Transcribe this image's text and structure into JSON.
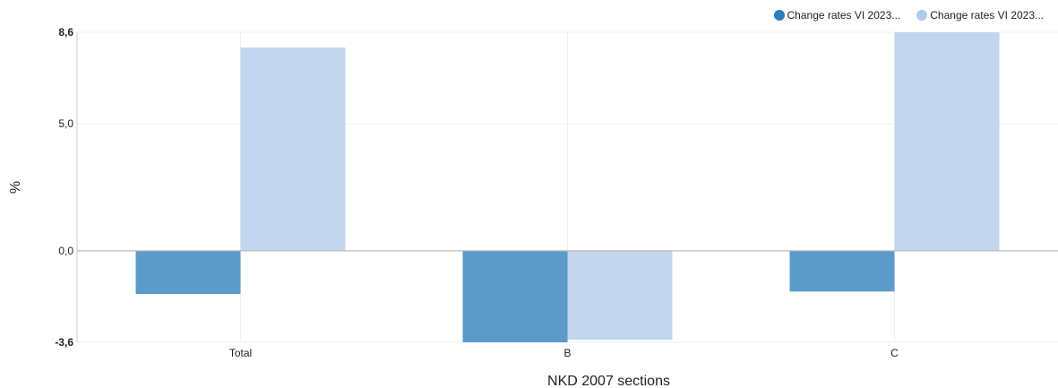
{
  "chart_data": {
    "type": "bar",
    "categories": [
      "Total",
      "B",
      "C"
    ],
    "series": [
      {
        "name": "Change rates VI 2023...",
        "color": "#5b9bc9",
        "values": [
          -1.7,
          -3.6,
          -1.6
        ]
      },
      {
        "name": "Change rates VI 2023...",
        "color": "#c3d5ec",
        "values": [
          8.0,
          -3.5,
          8.6
        ]
      }
    ],
    "xlabel": "NKD 2007 sections",
    "ylabel": "%",
    "ylim": [
      -3.6,
      8.6
    ],
    "yticks": [
      {
        "value": -3.6,
        "label": "-3,6",
        "bold": true
      },
      {
        "value": 0,
        "label": "0,0",
        "bold": false
      },
      {
        "value": 5,
        "label": "5,0",
        "bold": false
      },
      {
        "value": 8.6,
        "label": "8,6",
        "bold": true
      }
    ],
    "grid": true,
    "legend_position": "top-right"
  }
}
